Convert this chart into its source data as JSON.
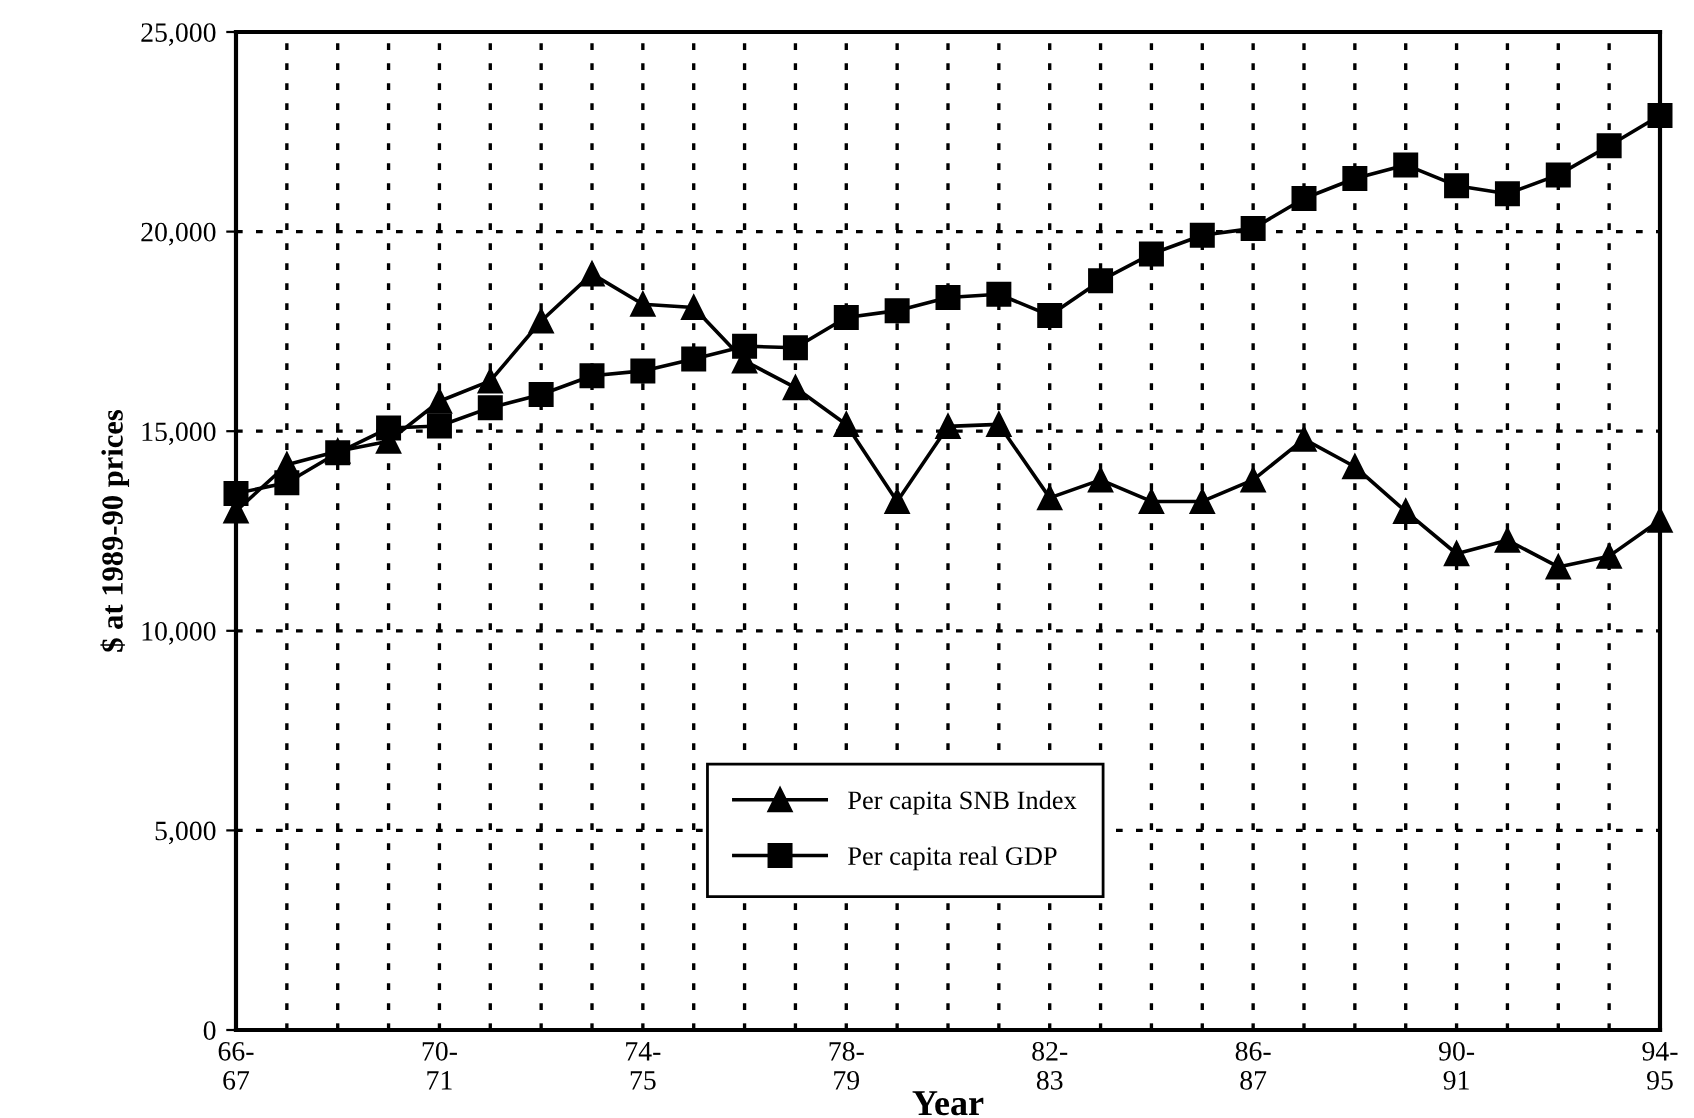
{
  "chart_data": {
    "type": "line",
    "xlabel": "Year",
    "ylabel": "$ at 1989-90 prices",
    "categories": [
      "66-\n67",
      null,
      null,
      null,
      "70-\n71",
      null,
      null,
      null,
      "74-\n75",
      null,
      null,
      null,
      "78-\n79",
      null,
      null,
      null,
      "82-\n83",
      null,
      null,
      null,
      "86-\n87",
      null,
      null,
      null,
      "90-\n91",
      null,
      null,
      null,
      "94-\n95"
    ],
    "series": [
      {
        "name": "Per capita SNB Index",
        "color": "#000000",
        "marker": "triangle",
        "values": [
          13000,
          14160,
          14500,
          14750,
          15750,
          16260,
          17760,
          18940,
          18180,
          18100,
          16760,
          16090,
          15170,
          13240,
          15120,
          15170,
          13330,
          13780,
          13240,
          13240,
          13780,
          14800,
          14110,
          12990,
          11930,
          12270,
          11600,
          11870,
          12770
        ]
      },
      {
        "name": "Per capita real GDP",
        "color": "#000000",
        "marker": "square",
        "values": [
          13440,
          13710,
          14460,
          15080,
          15130,
          15590,
          15920,
          16390,
          16510,
          16810,
          17130,
          17090,
          17850,
          18020,
          18350,
          18430,
          17900,
          18770,
          19440,
          19910,
          20080,
          20830,
          21330,
          21670,
          21150,
          20950,
          21420,
          22150,
          22910
        ]
      }
    ],
    "ylim": [
      0,
      25000
    ],
    "yticks": [
      {
        "value": 0,
        "label": "0"
      },
      {
        "value": 5000,
        "label": "5,000"
      },
      {
        "value": 10000,
        "label": "10,000"
      },
      {
        "value": 15000,
        "label": "15,000"
      },
      {
        "value": 20000,
        "label": "20,000"
      },
      {
        "value": 25000,
        "label": "25,000"
      }
    ],
    "grid": true,
    "line_style": "solid",
    "legend": "bottom"
  }
}
